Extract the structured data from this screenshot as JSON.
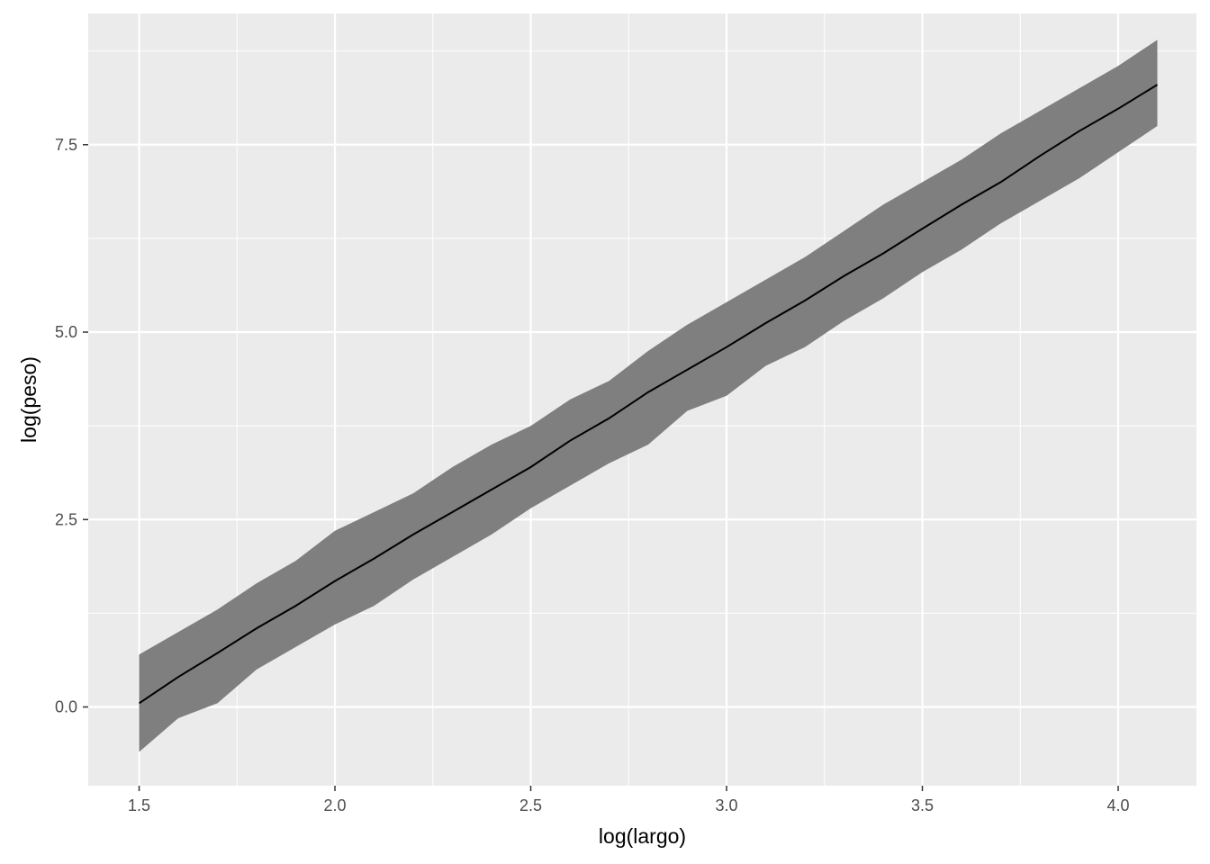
{
  "chart_data": {
    "type": "line",
    "title": "",
    "xlabel": "log(largo)",
    "ylabel": "log(peso)",
    "xlim": [
      1.37,
      4.2
    ],
    "ylim": [
      -1.05,
      9.25
    ],
    "x_ticks": [
      1.5,
      2.0,
      2.5,
      3.0,
      3.5,
      4.0
    ],
    "x_tick_labels": [
      "1.5",
      "2.0",
      "2.5",
      "3.0",
      "3.5",
      "4.0"
    ],
    "y_ticks": [
      0.0,
      2.5,
      5.0,
      7.5
    ],
    "y_tick_labels": [
      "0.0",
      "2.5",
      "5.0",
      "7.5"
    ],
    "grid": true,
    "legend": "none",
    "colors": {
      "panel_background": "#ebebeb",
      "grid": "#ffffff",
      "ribbon": "#7f7f7f",
      "line": "#000000"
    },
    "series": [
      {
        "kind": "ribbon",
        "x": [
          1.5,
          1.6,
          1.7,
          1.8,
          1.9,
          2.0,
          2.1,
          2.2,
          2.3,
          2.4,
          2.5,
          2.6,
          2.7,
          2.8,
          2.9,
          3.0,
          3.1,
          3.2,
          3.3,
          3.4,
          3.5,
          3.6,
          3.7,
          3.8,
          3.9,
          4.0,
          4.1
        ],
        "lower": [
          -0.6,
          -0.15,
          0.05,
          0.5,
          0.8,
          1.1,
          1.35,
          1.7,
          2.0,
          2.3,
          2.65,
          2.95,
          3.25,
          3.5,
          3.95,
          4.15,
          4.55,
          4.8,
          5.15,
          5.45,
          5.8,
          6.1,
          6.45,
          6.75,
          7.05,
          7.4,
          7.75
        ],
        "upper": [
          0.7,
          1.0,
          1.3,
          1.65,
          1.95,
          2.35,
          2.6,
          2.85,
          3.2,
          3.5,
          3.75,
          4.1,
          4.35,
          4.75,
          5.1,
          5.4,
          5.7,
          6.0,
          6.35,
          6.7,
          7.0,
          7.3,
          7.65,
          7.95,
          8.25,
          8.55,
          8.9
        ]
      },
      {
        "kind": "line",
        "x": [
          1.5,
          1.6,
          1.7,
          1.8,
          1.9,
          2.0,
          2.1,
          2.2,
          2.3,
          2.4,
          2.5,
          2.6,
          2.7,
          2.8,
          2.9,
          3.0,
          3.1,
          3.2,
          3.3,
          3.4,
          3.5,
          3.6,
          3.7,
          3.8,
          3.9,
          4.0,
          4.1
        ],
        "y": [
          0.05,
          0.4,
          0.72,
          1.05,
          1.35,
          1.68,
          1.98,
          2.3,
          2.6,
          2.9,
          3.2,
          3.55,
          3.85,
          4.2,
          4.5,
          4.8,
          5.12,
          5.42,
          5.75,
          6.05,
          6.38,
          6.7,
          7.0,
          7.35,
          7.68,
          7.98,
          8.3
        ]
      }
    ]
  }
}
